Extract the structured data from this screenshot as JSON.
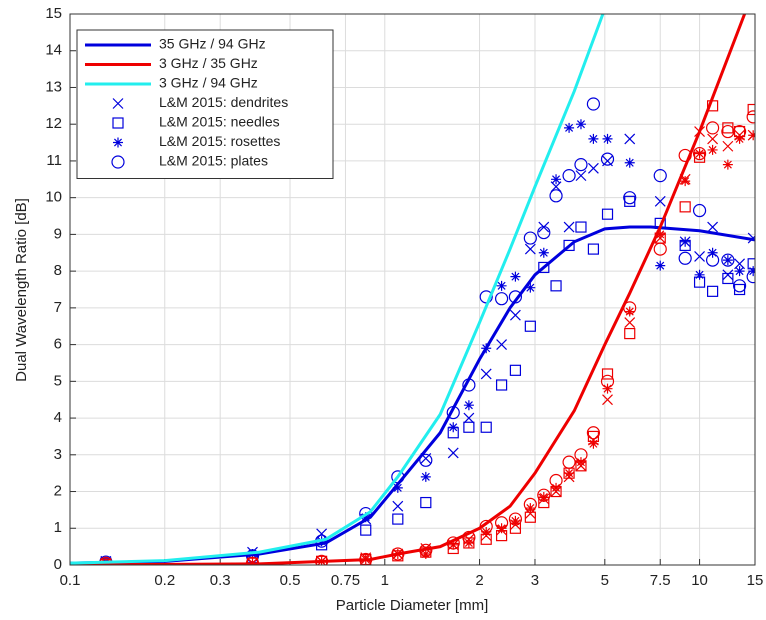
{
  "chart_data": {
    "type": "line",
    "xlabel": "Particle Diameter [mm]",
    "ylabel": "Dual Wavelength Ratio [dB]",
    "xscale": "log",
    "xlim": [
      0.1,
      15
    ],
    "ylim": [
      0,
      15
    ],
    "grid": true,
    "legend": "upper left",
    "xticks": [
      0.1,
      0.2,
      0.3,
      0.5,
      0.75,
      1,
      2,
      3,
      5,
      7.5,
      10,
      15
    ],
    "yticks": [
      0,
      1,
      2,
      3,
      4,
      5,
      6,
      7,
      8,
      9,
      10,
      11,
      12,
      13,
      14,
      15
    ],
    "series": [
      {
        "name": "35 GHz / 94 GHz",
        "color": "#0000dd",
        "marker": "line",
        "x": [
          0.1,
          0.2,
          0.4,
          0.65,
          0.9,
          1.1,
          1.5,
          2,
          2.5,
          3,
          4,
          5,
          6,
          7,
          10,
          15
        ],
        "values": [
          0.05,
          0.1,
          0.3,
          0.6,
          1.3,
          2.2,
          3.6,
          5.6,
          7.0,
          7.9,
          8.8,
          9.15,
          9.2,
          9.2,
          9.1,
          8.85
        ]
      },
      {
        "name": "3 GHz / 35 GHz",
        "color": "#ee0000",
        "marker": "line",
        "x": [
          0.1,
          0.4,
          0.9,
          1.1,
          1.5,
          2,
          2.5,
          3,
          4,
          5,
          6,
          7.5,
          10,
          13.9
        ],
        "values": [
          0,
          0.03,
          0.15,
          0.3,
          0.5,
          1.0,
          1.6,
          2.5,
          4.2,
          6.0,
          7.4,
          9.2,
          11.8,
          15
        ]
      },
      {
        "name": "3 GHz / 94 GHz",
        "color": "#22eeee",
        "marker": "line",
        "x": [
          0.1,
          0.2,
          0.4,
          0.65,
          0.9,
          1.1,
          1.5,
          2,
          2.5,
          3,
          4,
          4.93
        ],
        "values": [
          0.05,
          0.12,
          0.35,
          0.7,
          1.45,
          2.4,
          4.1,
          6.6,
          8.6,
          10.3,
          12.9,
          15
        ]
      },
      {
        "name": "L&M 2015: dendrites",
        "color": "#0000dd",
        "marker": "x",
        "x": [
          0.13,
          0.38,
          0.63,
          0.87,
          1.1,
          1.35,
          1.65,
          1.85,
          2.1,
          2.35,
          2.6,
          2.9,
          3.2,
          3.5,
          3.85,
          4.2,
          4.6,
          5.1,
          6.0,
          7.5,
          9.0,
          10,
          11,
          12.3,
          13.4,
          14.8
        ],
        "values": [
          0.1,
          0.35,
          0.85,
          1.25,
          1.6,
          2.9,
          3.05,
          4.0,
          5.2,
          6.0,
          6.8,
          8.6,
          9.2,
          10.3,
          9.2,
          10.6,
          10.8,
          11.0,
          11.6,
          9.9,
          8.8,
          8.4,
          9.2,
          7.9,
          8.2,
          8.9
        ]
      },
      {
        "name": "L&M 2015: needles",
        "color": "#0000dd",
        "marker": "square",
        "x": [
          0.13,
          0.38,
          0.63,
          0.87,
          1.1,
          1.35,
          1.65,
          1.85,
          2.1,
          2.35,
          2.6,
          2.9,
          3.2,
          3.5,
          3.85,
          4.2,
          4.6,
          5.1,
          6.0,
          7.5,
          9.0,
          10,
          11,
          12.3,
          13.4,
          14.8
        ],
        "values": [
          0.05,
          0.2,
          0.55,
          0.95,
          1.25,
          1.7,
          3.6,
          3.75,
          3.75,
          4.9,
          5.3,
          6.5,
          8.1,
          7.6,
          8.7,
          9.2,
          8.6,
          9.55,
          9.9,
          9.3,
          8.7,
          7.7,
          7.45,
          7.8,
          7.5,
          8.2
        ]
      },
      {
        "name": "L&M 2015: rosettes",
        "color": "#0000dd",
        "marker": "star",
        "x": [
          0.13,
          0.38,
          0.63,
          0.87,
          1.1,
          1.35,
          1.65,
          1.85,
          2.1,
          2.35,
          2.6,
          2.9,
          3.2,
          3.5,
          3.85,
          4.2,
          4.6,
          5.1,
          6.0,
          7.5,
          9.0,
          10,
          11,
          12.3,
          13.4,
          14.8
        ],
        "values": [
          0.08,
          0.3,
          0.65,
          1.3,
          2.1,
          2.4,
          3.75,
          4.35,
          5.9,
          7.6,
          7.85,
          7.55,
          8.5,
          10.5,
          11.9,
          12.0,
          11.6,
          11.6,
          10.95,
          8.15,
          8.8,
          7.9,
          8.5,
          8.3,
          8.0,
          8.0
        ]
      },
      {
        "name": "L&M 2015: plates",
        "color": "#0000dd",
        "marker": "circle",
        "x": [
          0.13,
          0.38,
          0.63,
          0.87,
          1.1,
          1.35,
          1.65,
          1.85,
          2.1,
          2.35,
          2.6,
          2.9,
          3.2,
          3.5,
          3.85,
          4.2,
          4.6,
          5.1,
          6.0,
          7.5,
          9.0,
          10,
          11,
          12.3,
          13.4,
          14.8
        ],
        "values": [
          0.08,
          0.25,
          0.65,
          1.4,
          2.4,
          2.85,
          4.15,
          4.9,
          7.3,
          7.25,
          7.3,
          8.9,
          9.05,
          10.05,
          10.6,
          10.9,
          12.55,
          11.05,
          10.0,
          10.6,
          8.35,
          9.65,
          8.3,
          8.3,
          7.6,
          7.85
        ]
      },
      {
        "color": "#ee0000",
        "marker": "x",
        "x": [
          0.13,
          0.38,
          0.63,
          0.87,
          1.1,
          1.35,
          1.65,
          1.85,
          2.1,
          2.35,
          2.6,
          2.9,
          3.2,
          3.5,
          3.85,
          4.2,
          4.6,
          5.1,
          6.0,
          7.5,
          9.0,
          10,
          11,
          12.3,
          13.4,
          14.8
        ],
        "values": [
          0.05,
          0.05,
          0.1,
          0.2,
          0.3,
          0.45,
          0.55,
          0.7,
          0.8,
          0.95,
          1.1,
          1.4,
          1.8,
          2.0,
          2.4,
          2.7,
          3.4,
          4.5,
          6.6,
          8.9,
          10.5,
          11.8,
          11.6,
          11.4,
          11.7,
          11.7
        ]
      },
      {
        "color": "#ee0000",
        "marker": "square",
        "x": [
          0.13,
          0.38,
          0.63,
          0.87,
          1.1,
          1.35,
          1.65,
          1.85,
          2.1,
          2.35,
          2.6,
          2.9,
          3.2,
          3.5,
          3.85,
          4.2,
          4.6,
          5.1,
          6.0,
          7.5,
          9.0,
          10,
          11,
          12.3,
          13.4,
          14.8
        ],
        "values": [
          0.02,
          0.05,
          0.1,
          0.15,
          0.25,
          0.35,
          0.45,
          0.6,
          0.7,
          0.8,
          1.0,
          1.3,
          1.7,
          2.0,
          2.5,
          2.7,
          3.5,
          5.2,
          6.3,
          8.9,
          9.75,
          11.1,
          12.5,
          11.9,
          11.8,
          12.4
        ]
      },
      {
        "color": "#ee0000",
        "marker": "star",
        "x": [
          0.13,
          0.38,
          0.63,
          0.87,
          1.1,
          1.35,
          1.65,
          1.85,
          2.1,
          2.35,
          2.6,
          2.9,
          3.2,
          3.5,
          3.85,
          4.2,
          4.6,
          5.1,
          6.0,
          7.5,
          9.0,
          10,
          11,
          12.3,
          13.4,
          14.8
        ],
        "values": [
          0.05,
          0.05,
          0.1,
          0.15,
          0.3,
          0.3,
          0.55,
          0.6,
          0.9,
          1.0,
          1.2,
          1.55,
          1.85,
          2.1,
          2.5,
          2.8,
          3.3,
          4.8,
          6.9,
          9.0,
          10.45,
          11.2,
          11.3,
          10.9,
          11.6,
          11.7
        ]
      },
      {
        "color": "#ee0000",
        "marker": "circle",
        "x": [
          0.13,
          0.38,
          0.63,
          0.87,
          1.1,
          1.35,
          1.65,
          1.85,
          2.1,
          2.35,
          2.6,
          2.9,
          3.2,
          3.5,
          3.85,
          4.2,
          4.6,
          5.1,
          6.0,
          7.5,
          9.0,
          10,
          11,
          12.3,
          13.4,
          14.8
        ],
        "values": [
          0.05,
          0.05,
          0.1,
          0.15,
          0.3,
          0.4,
          0.6,
          0.75,
          1.05,
          1.15,
          1.25,
          1.65,
          1.9,
          2.3,
          2.8,
          3.0,
          3.6,
          5.0,
          7.0,
          8.6,
          11.15,
          11.2,
          11.9,
          11.8,
          11.8,
          12.2
        ]
      }
    ]
  }
}
